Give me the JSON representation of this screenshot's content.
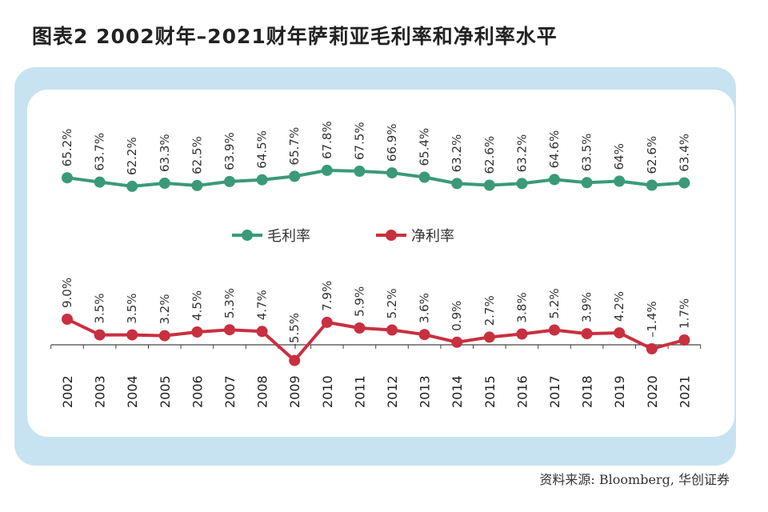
{
  "title": "图表2   2002财年–2021财年萨莉亚毛利率和净利率水平",
  "source": "资料来源: Bloomberg, 华创证券",
  "colors": {
    "gross": "#3a9a78",
    "net": "#c8303f",
    "panel_outer": "#c7e3f1"
  },
  "chart_data": {
    "type": "line",
    "categories": [
      "2002",
      "2003",
      "2004",
      "2005",
      "2006",
      "2007",
      "2008",
      "2009",
      "2010",
      "2011",
      "2012",
      "2013",
      "2014",
      "2015",
      "2016",
      "2017",
      "2018",
      "2019",
      "2020",
      "2021"
    ],
    "series": [
      {
        "name": "毛利率",
        "values": [
          65.2,
          63.7,
          62.2,
          63.3,
          62.5,
          63.9,
          64.5,
          65.7,
          67.8,
          67.5,
          66.9,
          65.4,
          63.2,
          62.6,
          63.2,
          64.6,
          63.5,
          64,
          62.6,
          63.4
        ],
        "labels": [
          "65.2%",
          "63.7%",
          "62.2%",
          "63.3%",
          "62.5%",
          "63.9%",
          "64.5%",
          "65.7%",
          "67.8%",
          "67.5%",
          "66.9%",
          "65.4%",
          "63.2%",
          "62.6%",
          "63.2%",
          "64.6%",
          "63.5%",
          "64%",
          "62.6%",
          "63.4%"
        ]
      },
      {
        "name": "净利率",
        "values": [
          9.0,
          3.5,
          3.5,
          3.2,
          4.5,
          5.3,
          4.7,
          -5.5,
          7.9,
          5.9,
          5.2,
          3.6,
          0.9,
          2.7,
          3.8,
          5.2,
          3.9,
          4.2,
          -1.4,
          1.7
        ],
        "labels": [
          "9.0%",
          "3.5%",
          "3.5%",
          "3.2%",
          "4.5%",
          "5.3%",
          "4.7%",
          "–5.5%",
          "7.9%",
          "5.9%",
          "5.2%",
          "3.6%",
          "0.9%",
          "2.7%",
          "3.8%",
          "5.2%",
          "3.9%",
          "4.2%",
          "–1.4%",
          "1.7%"
        ]
      }
    ],
    "legend": "center"
  }
}
